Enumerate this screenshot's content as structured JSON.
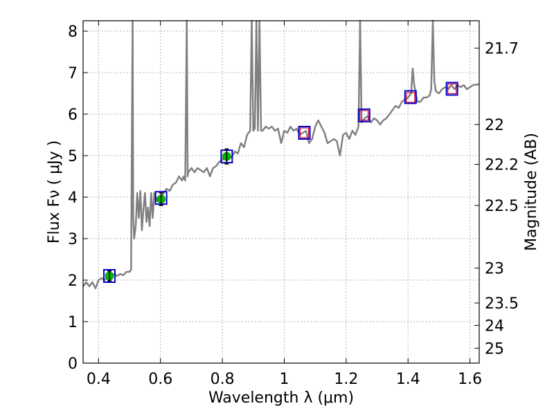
{
  "chart_data": {
    "type": "line",
    "xlabel": "Wavelength  λ (μm)",
    "ylabel": "Flux  Fν  ( μJy )",
    "y2label": "Magnitude (AB)",
    "xlim": [
      0.35,
      1.63
    ],
    "ylim": [
      0,
      8.25
    ],
    "grid": true,
    "x_ticks": [
      {
        "value": 0.4,
        "label": "0.4"
      },
      {
        "value": 0.6,
        "label": "0.6"
      },
      {
        "value": 0.8,
        "label": "0.8"
      },
      {
        "value": 1.0,
        "label": "1"
      },
      {
        "value": 1.2,
        "label": "1.2"
      },
      {
        "value": 1.4,
        "label": "1.4"
      },
      {
        "value": 1.6,
        "label": "1.6"
      }
    ],
    "y_ticks": [
      {
        "value": 0,
        "label": "0"
      },
      {
        "value": 1,
        "label": "1"
      },
      {
        "value": 2,
        "label": "2"
      },
      {
        "value": 3,
        "label": "3"
      },
      {
        "value": 4,
        "label": "4"
      },
      {
        "value": 5,
        "label": "5"
      },
      {
        "value": 6,
        "label": "6"
      },
      {
        "value": 7,
        "label": "7"
      },
      {
        "value": 8,
        "label": "8"
      }
    ],
    "y2_ticks": [
      {
        "flux": 7.59,
        "label": "21.7"
      },
      {
        "flux": 5.75,
        "label": "22"
      },
      {
        "flux": 4.79,
        "label": "22.2"
      },
      {
        "flux": 3.8,
        "label": "22.5"
      },
      {
        "flux": 2.29,
        "label": "23"
      },
      {
        "flux": 1.45,
        "label": "23.5"
      },
      {
        "flux": 0.91,
        "label": "24"
      },
      {
        "flux": 0.36,
        "label": "25"
      }
    ],
    "colors": {
      "spectrum": "#808080",
      "model_box": "#0000cc",
      "inner_box": "#cc0033",
      "measured_point": "#00bb00",
      "grid": "#9a9a9a"
    },
    "series": [
      {
        "kind": "spectrum",
        "points": [
          [
            0.35,
            1.85
          ],
          [
            0.36,
            1.95
          ],
          [
            0.37,
            1.85
          ],
          [
            0.38,
            1.95
          ],
          [
            0.39,
            1.8
          ],
          [
            0.4,
            2.0
          ],
          [
            0.41,
            2.05
          ],
          [
            0.42,
            2.0
          ],
          [
            0.43,
            2.08
          ],
          [
            0.44,
            2.12
          ],
          [
            0.45,
            2.15
          ],
          [
            0.46,
            2.1
          ],
          [
            0.47,
            2.15
          ],
          [
            0.48,
            2.12
          ],
          [
            0.49,
            2.2
          ],
          [
            0.5,
            2.2
          ],
          [
            0.505,
            2.25
          ],
          [
            0.51,
            8.25
          ],
          [
            0.512,
            3.5
          ],
          [
            0.515,
            3.0
          ],
          [
            0.52,
            3.3
          ],
          [
            0.525,
            4.1
          ],
          [
            0.53,
            3.5
          ],
          [
            0.535,
            4.15
          ],
          [
            0.54,
            3.2
          ],
          [
            0.545,
            3.7
          ],
          [
            0.55,
            4.1
          ],
          [
            0.555,
            3.4
          ],
          [
            0.56,
            3.75
          ],
          [
            0.565,
            3.3
          ],
          [
            0.57,
            4.1
          ],
          [
            0.575,
            3.5
          ],
          [
            0.58,
            4.1
          ],
          [
            0.59,
            3.9
          ],
          [
            0.6,
            3.95
          ],
          [
            0.61,
            4.1
          ],
          [
            0.62,
            4.2
          ],
          [
            0.63,
            4.15
          ],
          [
            0.64,
            4.3
          ],
          [
            0.65,
            4.35
          ],
          [
            0.66,
            4.5
          ],
          [
            0.67,
            4.4
          ],
          [
            0.675,
            4.5
          ],
          [
            0.68,
            4.4
          ],
          [
            0.685,
            8.25
          ],
          [
            0.688,
            4.5
          ],
          [
            0.69,
            4.6
          ],
          [
            0.7,
            4.7
          ],
          [
            0.71,
            4.6
          ],
          [
            0.72,
            4.7
          ],
          [
            0.73,
            4.65
          ],
          [
            0.74,
            4.6
          ],
          [
            0.75,
            4.7
          ],
          [
            0.76,
            4.5
          ],
          [
            0.77,
            4.7
          ],
          [
            0.78,
            4.75
          ],
          [
            0.79,
            4.85
          ],
          [
            0.8,
            4.9
          ],
          [
            0.81,
            4.95
          ],
          [
            0.82,
            5.0
          ],
          [
            0.83,
            4.95
          ],
          [
            0.84,
            5.1
          ],
          [
            0.85,
            5.05
          ],
          [
            0.86,
            5.3
          ],
          [
            0.87,
            5.2
          ],
          [
            0.88,
            5.5
          ],
          [
            0.89,
            5.6
          ],
          [
            0.895,
            8.25
          ],
          [
            0.9,
            5.6
          ],
          [
            0.905,
            5.65
          ],
          [
            0.91,
            8.25
          ],
          [
            0.915,
            5.6
          ],
          [
            0.92,
            8.25
          ],
          [
            0.925,
            5.6
          ],
          [
            0.93,
            5.6
          ],
          [
            0.94,
            5.7
          ],
          [
            0.95,
            5.65
          ],
          [
            0.96,
            5.7
          ],
          [
            0.97,
            5.6
          ],
          [
            0.98,
            5.65
          ],
          [
            0.99,
            5.3
          ],
          [
            1.0,
            5.6
          ],
          [
            1.01,
            5.55
          ],
          [
            1.02,
            5.7
          ],
          [
            1.03,
            5.6
          ],
          [
            1.04,
            5.65
          ],
          [
            1.05,
            5.5
          ],
          [
            1.06,
            5.55
          ],
          [
            1.07,
            5.6
          ],
          [
            1.08,
            5.3
          ],
          [
            1.09,
            5.4
          ],
          [
            1.1,
            5.7
          ],
          [
            1.11,
            5.85
          ],
          [
            1.12,
            5.7
          ],
          [
            1.13,
            5.55
          ],
          [
            1.14,
            5.3
          ],
          [
            1.15,
            5.35
          ],
          [
            1.16,
            5.4
          ],
          [
            1.17,
            5.35
          ],
          [
            1.18,
            5.0
          ],
          [
            1.19,
            5.5
          ],
          [
            1.2,
            5.55
          ],
          [
            1.21,
            5.4
          ],
          [
            1.22,
            5.6
          ],
          [
            1.23,
            5.5
          ],
          [
            1.24,
            5.7
          ],
          [
            1.245,
            8.25
          ],
          [
            1.25,
            5.8
          ],
          [
            1.26,
            5.9
          ],
          [
            1.27,
            5.95
          ],
          [
            1.28,
            5.8
          ],
          [
            1.29,
            5.9
          ],
          [
            1.3,
            5.85
          ],
          [
            1.31,
            5.75
          ],
          [
            1.32,
            5.85
          ],
          [
            1.33,
            5.9
          ],
          [
            1.34,
            6.0
          ],
          [
            1.35,
            6.1
          ],
          [
            1.36,
            6.2
          ],
          [
            1.37,
            6.15
          ],
          [
            1.38,
            6.3
          ],
          [
            1.39,
            6.35
          ],
          [
            1.4,
            6.4
          ],
          [
            1.41,
            6.5
          ],
          [
            1.415,
            7.1
          ],
          [
            1.42,
            6.7
          ],
          [
            1.43,
            6.3
          ],
          [
            1.44,
            6.3
          ],
          [
            1.45,
            6.4
          ],
          [
            1.46,
            6.4
          ],
          [
            1.47,
            6.45
          ],
          [
            1.475,
            6.6
          ],
          [
            1.48,
            8.25
          ],
          [
            1.485,
            6.8
          ],
          [
            1.49,
            6.55
          ],
          [
            1.5,
            6.5
          ],
          [
            1.51,
            6.6
          ],
          [
            1.52,
            6.65
          ],
          [
            1.53,
            6.6
          ],
          [
            1.54,
            6.7
          ],
          [
            1.55,
            6.6
          ],
          [
            1.56,
            6.7
          ],
          [
            1.57,
            6.65
          ],
          [
            1.58,
            6.7
          ],
          [
            1.59,
            6.6
          ],
          [
            1.6,
            6.65
          ],
          [
            1.61,
            6.7
          ],
          [
            1.63,
            6.72
          ]
        ]
      },
      {
        "kind": "model_photometry",
        "points": [
          [
            0.435,
            2.1
          ],
          [
            0.602,
            3.98
          ],
          [
            0.814,
            4.98
          ],
          [
            1.065,
            5.55
          ],
          [
            1.258,
            5.97
          ],
          [
            1.408,
            6.41
          ],
          [
            1.542,
            6.61
          ]
        ]
      },
      {
        "kind": "inner_photometry",
        "points": [
          [
            1.065,
            5.55
          ],
          [
            1.258,
            5.97
          ],
          [
            1.408,
            6.4
          ],
          [
            1.542,
            6.61
          ]
        ]
      },
      {
        "kind": "measured",
        "points": [
          {
            "x": 0.435,
            "y": 2.1,
            "err": 0.12
          },
          {
            "x": 0.602,
            "y": 3.95,
            "err": 0.15
          },
          {
            "x": 0.814,
            "y": 4.98,
            "err": 0.18
          }
        ]
      }
    ]
  }
}
